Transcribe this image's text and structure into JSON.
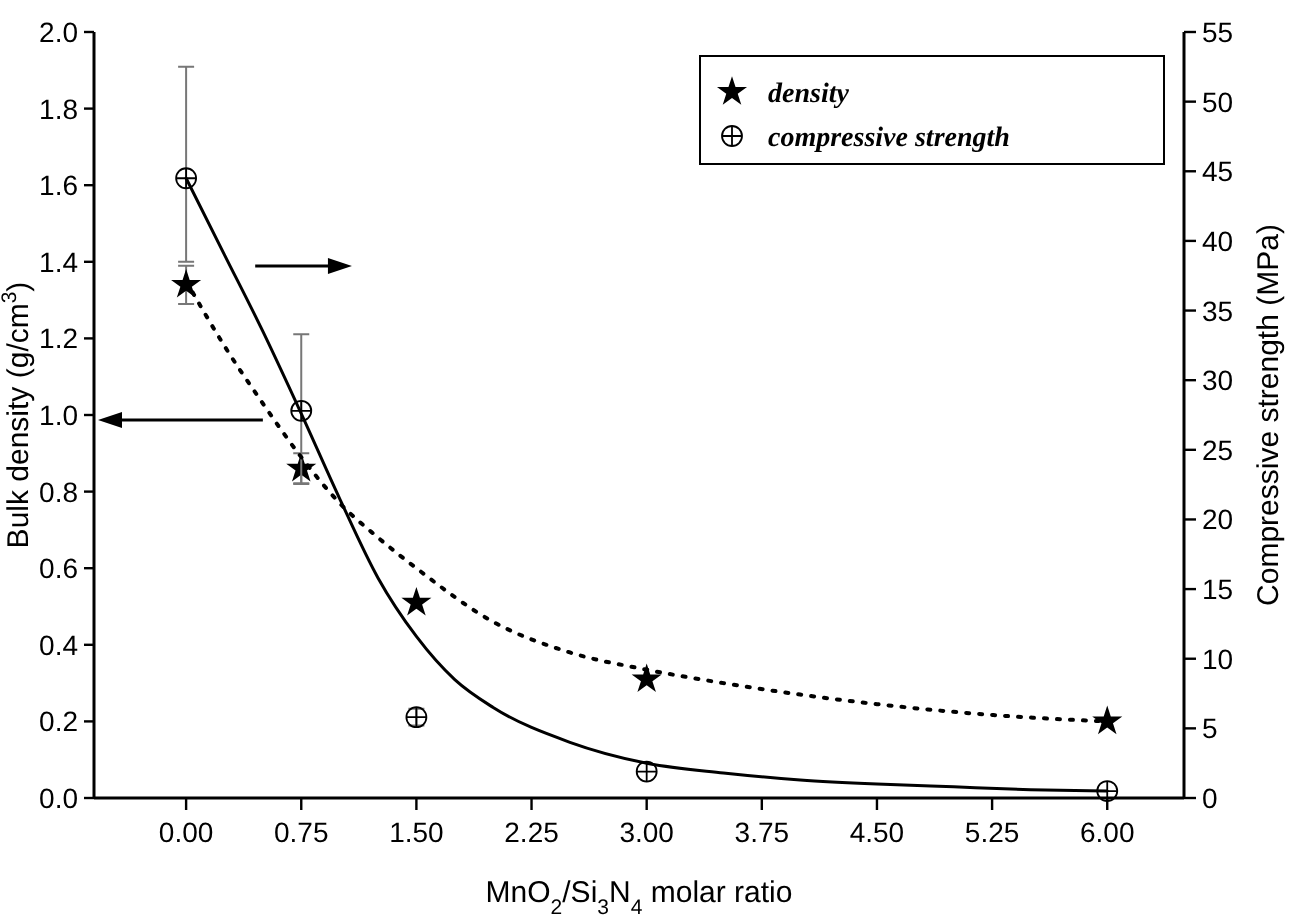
{
  "chart_data": {
    "type": "scatter",
    "xlabel": "MnO$_{2}$/Si$_{3}$N$_{4}$ molar ratio",
    "ylabel": "Bulk density (g/cm$^{3}$)",
    "y2label": "Compressive strength (MPa)",
    "xlim": [
      -0.6,
      6.5
    ],
    "xticks": [
      {
        "value": 0,
        "label": "0.00"
      },
      {
        "value": 0.75,
        "label": "0.75"
      },
      {
        "value": 1.5,
        "label": "1.50"
      },
      {
        "value": 2.25,
        "label": "2.25"
      },
      {
        "value": 3,
        "label": "3.00"
      },
      {
        "value": 3.75,
        "label": "3.75"
      },
      {
        "value": 4.5,
        "label": "4.50"
      },
      {
        "value": 5.25,
        "label": "5.25"
      },
      {
        "value": 6,
        "label": "6.00"
      }
    ],
    "ylim": [
      0,
      2
    ],
    "yticks": [
      {
        "value": 0,
        "label": "0.0"
      },
      0.2,
      0.4,
      0.6,
      0.8,
      {
        "value": 1,
        "label": "1.0"
      },
      1.2,
      1.4,
      1.6,
      1.8,
      {
        "value": 2,
        "label": "2.0"
      }
    ],
    "y2lim": [
      0,
      55
    ],
    "y2ticks": [
      0,
      5,
      10,
      15,
      20,
      25,
      30,
      35,
      40,
      45,
      50,
      55
    ],
    "legend": "top right",
    "grid": false,
    "series": [
      {
        "name": "density",
        "marker": "star",
        "color": "#000000",
        "x": [
          0,
          0.75,
          1.5,
          3,
          6
        ],
        "values": [
          1.34,
          0.86,
          0.51,
          0.31,
          0.2
        ],
        "errors": [
          0.05,
          0.04,
          null,
          null,
          null
        ]
      },
      {
        "name": "compressive strength",
        "marker": "circle",
        "color": "#000000",
        "axis": "y2",
        "x": [
          0,
          0.75,
          1.5,
          3,
          6
        ],
        "values": [
          44.5,
          27.8,
          5.8,
          1.9,
          0.5
        ],
        "errors": [
          [
            38.5,
            52.5
          ],
          [
            22.6,
            33.3
          ],
          0.6,
          null,
          null
        ]
      },
      {
        "type": "line",
        "marker": "none",
        "line_style": "dotted",
        "color": "#000000",
        "x": [
          0,
          0.25,
          0.5,
          0.75,
          1,
          1.25,
          1.5,
          2,
          2.5,
          3,
          3.5,
          4,
          4.5,
          5,
          5.5,
          6
        ],
        "values": [
          1.35,
          1.18,
          1.03,
          0.89,
          0.77,
          0.68,
          0.6,
          0.46,
          0.38,
          0.335,
          0.3,
          0.27,
          0.245,
          0.225,
          0.21,
          0.2
        ]
      },
      {
        "type": "line",
        "marker": "none",
        "line_style": "solid",
        "color": "#000000",
        "axis": "y2",
        "x": [
          0,
          0.25,
          0.5,
          0.75,
          1,
          1.25,
          1.5,
          1.75,
          2,
          2.5,
          3,
          3.5,
          4,
          4.5,
          5,
          5.5,
          6
        ],
        "values": [
          44.5,
          39,
          33.5,
          27.6,
          21.5,
          15.8,
          11.6,
          8.5,
          6.5,
          4,
          2.5,
          1.8,
          1.3,
          1,
          0.8,
          0.6,
          0.5
        ]
      }
    ]
  }
}
